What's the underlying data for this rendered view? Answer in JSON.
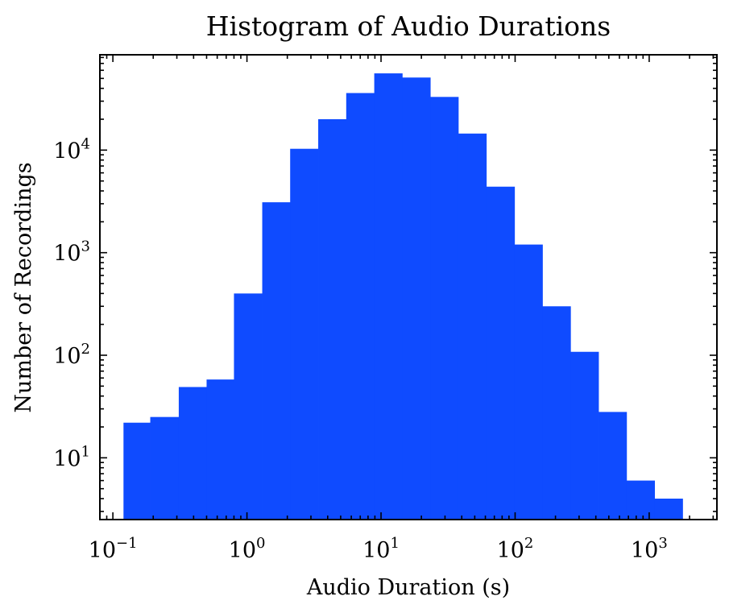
{
  "chart_data": {
    "type": "bar",
    "title": "Histogram of Audio Durations",
    "xlabel": "Audio Duration (s)",
    "ylabel": "Number of Recordings",
    "xscale": "log",
    "yscale": "log",
    "bar_color": "#0f4bff",
    "grid": false,
    "legend": "none",
    "x_ticks": [
      {
        "value": 0.1,
        "base": "10",
        "exp": "−1"
      },
      {
        "value": 1,
        "base": "10",
        "exp": "0"
      },
      {
        "value": 10,
        "base": "10",
        "exp": "1"
      },
      {
        "value": 100,
        "base": "10",
        "exp": "2"
      },
      {
        "value": 1000,
        "base": "10",
        "exp": "3"
      }
    ],
    "y_ticks": [
      {
        "value": 10,
        "base": "10",
        "exp": "1"
      },
      {
        "value": 100,
        "base": "10",
        "exp": "2"
      },
      {
        "value": 1000,
        "base": "10",
        "exp": "3"
      },
      {
        "value": 10000,
        "base": "10",
        "exp": "4"
      }
    ],
    "xlim": [
      0.08,
      3200
    ],
    "ylim": [
      2.5,
      85000
    ],
    "bins": [
      {
        "x0": 0.12,
        "x1": 0.19,
        "count": 22
      },
      {
        "x0": 0.19,
        "x1": 0.31,
        "count": 25
      },
      {
        "x0": 0.31,
        "x1": 0.5,
        "count": 49
      },
      {
        "x0": 0.5,
        "x1": 0.8,
        "count": 58
      },
      {
        "x0": 0.8,
        "x1": 1.3,
        "count": 400
      },
      {
        "x0": 1.3,
        "x1": 2.1,
        "count": 3100
      },
      {
        "x0": 2.1,
        "x1": 3.4,
        "count": 10300
      },
      {
        "x0": 3.4,
        "x1": 5.5,
        "count": 20000
      },
      {
        "x0": 5.5,
        "x1": 8.9,
        "count": 36000
      },
      {
        "x0": 8.9,
        "x1": 14.4,
        "count": 56000
      },
      {
        "x0": 14.4,
        "x1": 23.3,
        "count": 51000
      },
      {
        "x0": 23.3,
        "x1": 37.7,
        "count": 33000
      },
      {
        "x0": 37.7,
        "x1": 61,
        "count": 14500
      },
      {
        "x0": 61,
        "x1": 99,
        "count": 4400
      },
      {
        "x0": 99,
        "x1": 160,
        "count": 1200
      },
      {
        "x0": 160,
        "x1": 259,
        "count": 300
      },
      {
        "x0": 259,
        "x1": 419,
        "count": 108
      },
      {
        "x0": 419,
        "x1": 678,
        "count": 28
      },
      {
        "x0": 678,
        "x1": 1097,
        "count": 6
      },
      {
        "x0": 1097,
        "x1": 1776,
        "count": 4
      }
    ]
  }
}
